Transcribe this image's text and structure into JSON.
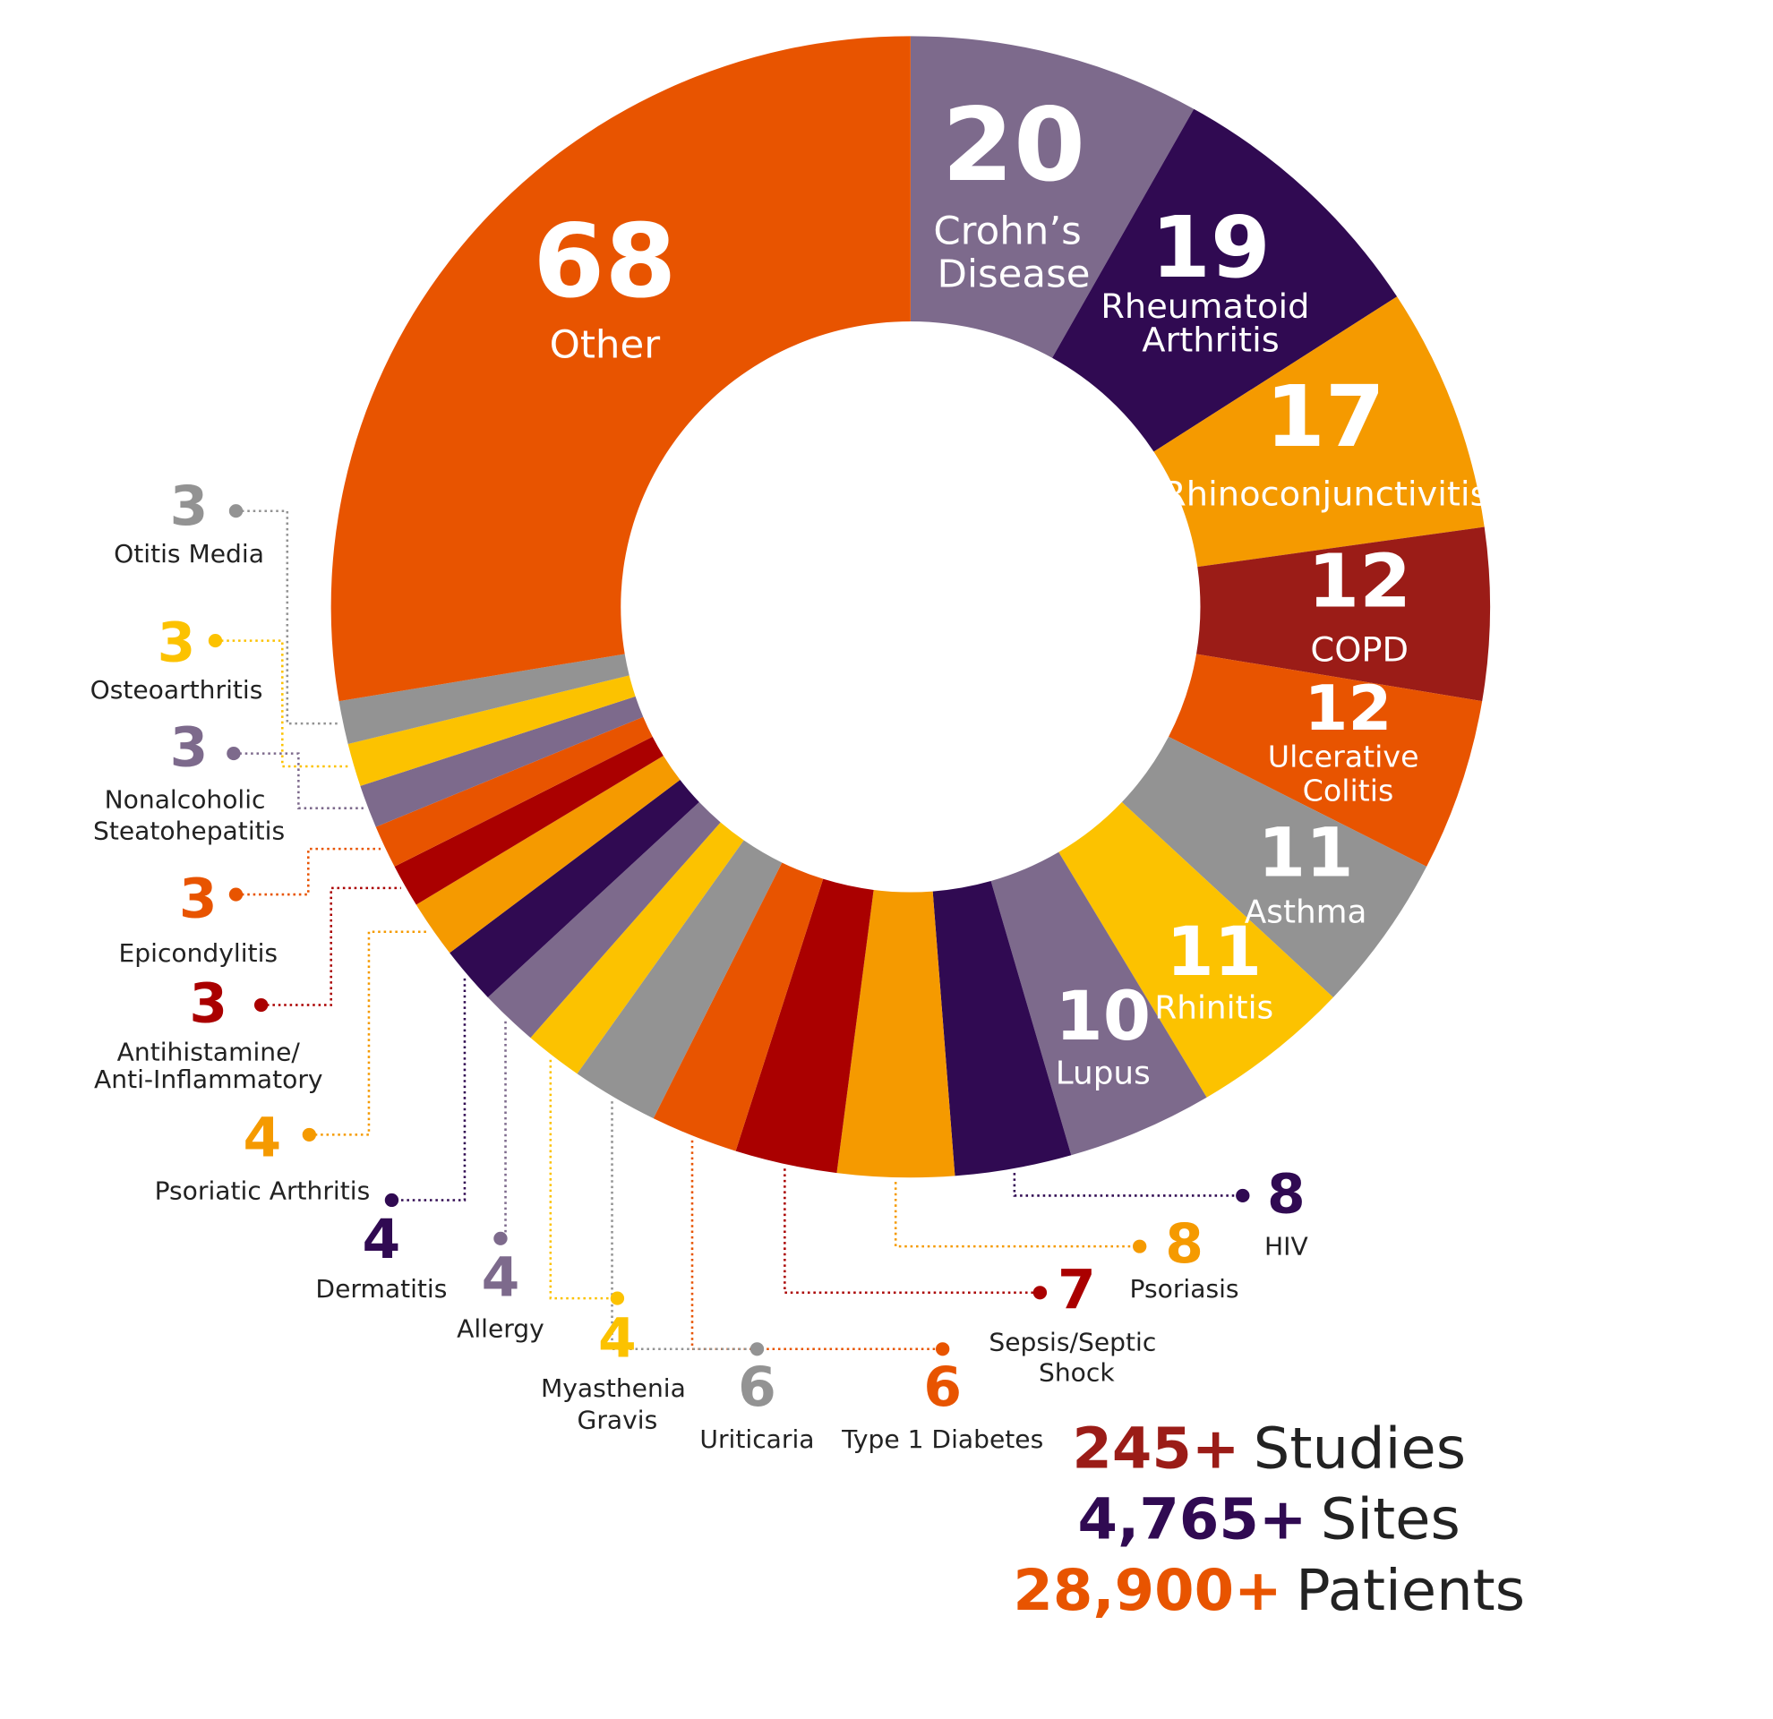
{
  "chart_data": {
    "type": "donut",
    "categories": [
      "Crohn’s Disease",
      "Rheumatoid Arthritis",
      "Rhinoconjunctivitis",
      "COPD",
      "Ulcerative Colitis",
      "Asthma",
      "Rhinitis",
      "Lupus",
      "HIV",
      "Psoriasis",
      "Sepsis/Septic Shock",
      "Type 1 Diabetes",
      "Uriticaria",
      "Myasthenia Gravis",
      "Allergy",
      "Dermatitis",
      "Psoriatic Arthritis",
      "Antihistamine/Anti-Inflammatory",
      "Epicondylitis",
      "Nonalcoholic Steatohepatitis",
      "Osteoarthritis",
      "Otitis Media",
      "Other"
    ],
    "values": [
      20,
      19,
      17,
      12,
      12,
      11,
      11,
      10,
      8,
      8,
      7,
      6,
      6,
      4,
      4,
      4,
      4,
      3,
      3,
      3,
      3,
      3,
      68
    ],
    "colors": [
      "#7d6a8c",
      "#300a52",
      "#f59a00",
      "#9b1c17",
      "#e85400",
      "#939393",
      "#fcc200",
      "#7d6a8c",
      "#300a52",
      "#f59a00",
      "#aa0000",
      "#e85400",
      "#939393",
      "#fcc200",
      "#7d6a8c",
      "#300a52",
      "#f59a00",
      "#aa0000",
      "#e85400",
      "#7d6a8c",
      "#fcc200",
      "#939393",
      "#e85400"
    ]
  },
  "stats": [
    {
      "number": "245+",
      "label": "Studies",
      "color": "#9b1c17"
    },
    {
      "number": "4,765+",
      "label": "Sites",
      "color": "#300a52"
    },
    {
      "number": "28,900+",
      "label": "Patients",
      "color": "#e85400"
    }
  ]
}
